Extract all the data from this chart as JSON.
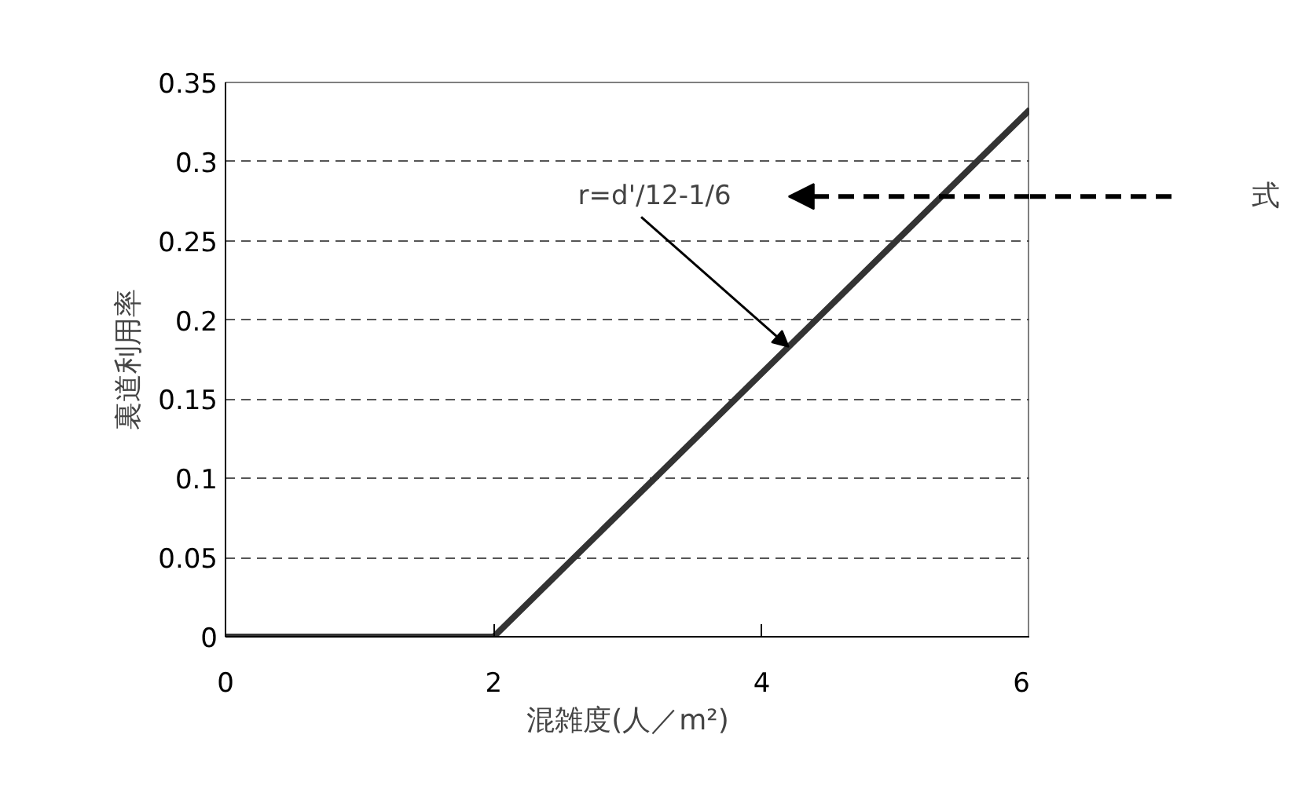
{
  "chart_data": {
    "type": "line",
    "xlabel": "混雑度(人／m²)",
    "ylabel": "裏道利用率",
    "x": [
      0,
      2,
      6
    ],
    "series": [
      {
        "color": "#333333",
        "values": [
          0,
          0,
          0.333
        ]
      }
    ],
    "xlim": [
      0,
      6
    ],
    "xticks": [
      0,
      2,
      4,
      6
    ],
    "ylim": [
      0,
      0.35
    ],
    "yticks": [
      0,
      0.05,
      0.1,
      0.15,
      0.2,
      0.25,
      0.3,
      0.35
    ],
    "grid": "y",
    "line_style": "solid",
    "marker": "none",
    "annotations": [
      {
        "text": "r=d'/12-1/6",
        "x": 4.2,
        "y": 0.183
      },
      "式"
    ]
  }
}
